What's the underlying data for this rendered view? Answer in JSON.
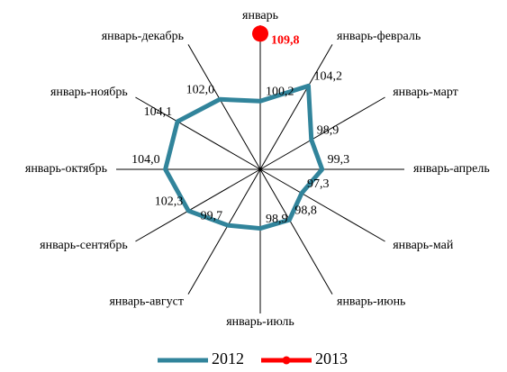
{
  "chart_data": {
    "type": "radar",
    "categories": [
      "январь",
      "январь-февраль",
      "январь-март",
      "январь-апрель",
      "январь-май",
      "январь-июнь",
      "январь-июль",
      "январь-август",
      "январь-сентябрь",
      "январь-октябрь",
      "январь-ноябрь",
      "январь-декабрь"
    ],
    "rlim": [
      90.5,
      111
    ],
    "series": [
      {
        "name": "2012",
        "color": "#31849b",
        "values": [
          100.2,
          104.2,
          98.9,
          99.3,
          97.3,
          98.8,
          98.9,
          99.7,
          102.3,
          104.0,
          104.1,
          102.0
        ],
        "value_labels": [
          "100,2",
          "104,2",
          "98,9",
          "99,3",
          "97,3",
          "98,8",
          "98,9",
          "99,7",
          "102,3",
          "104,0",
          "104,1",
          "102,0"
        ]
      },
      {
        "name": "2013",
        "color": "#ff0000",
        "values": [
          109.8,
          null,
          null,
          null,
          null,
          null,
          null,
          null,
          null,
          null,
          null,
          null
        ],
        "value_labels": [
          "109,8",
          null,
          null,
          null,
          null,
          null,
          null,
          null,
          null,
          null,
          null,
          null
        ]
      }
    ],
    "legend": "bottom"
  }
}
